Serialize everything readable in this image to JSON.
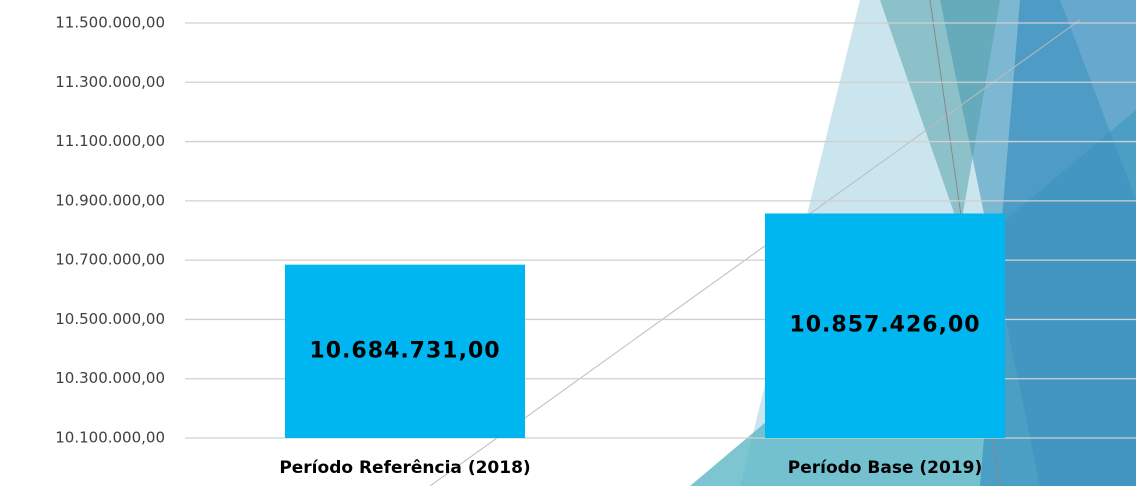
{
  "chart_data": {
    "type": "bar",
    "categories": [
      "Período Referência (2018)",
      "Período Base (2019)"
    ],
    "values": [
      10684731,
      10857426
    ],
    "value_labels": [
      "10.684.731,00",
      "10.857.426,00"
    ],
    "color": "#00b6f0",
    "ylim": [
      10100000,
      11500000
    ],
    "yticks": [
      {
        "value": 10100000,
        "label": "10.100.000,00"
      },
      {
        "value": 10300000,
        "label": "10.300.000,00"
      },
      {
        "value": 10500000,
        "label": "10.500.000,00"
      },
      {
        "value": 10700000,
        "label": "10.700.000,00"
      },
      {
        "value": 10900000,
        "label": "10.900.000,00"
      },
      {
        "value": 11100000,
        "label": "11.100.000,00"
      },
      {
        "value": 11300000,
        "label": "11.300.000,00"
      },
      {
        "value": 11500000,
        "label": "11.500.000,00"
      }
    ],
    "grid": true
  }
}
